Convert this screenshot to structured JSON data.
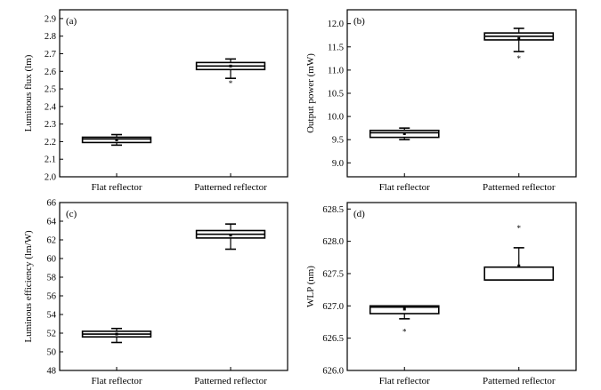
{
  "chart_data": [
    {
      "type": "box",
      "panel_label": "(a)",
      "ylabel": "Luminous flux (lm)",
      "categories": [
        "Flat reflector",
        "Patterned reflector"
      ],
      "ylim": [
        2.0,
        2.95
      ],
      "yticks": [
        "2.0",
        "2.1",
        "2.2",
        "2.3",
        "2.4",
        "2.5",
        "2.6",
        "2.7",
        "2.8",
        "2.9"
      ],
      "boxes": [
        {
          "category": "Flat reflector",
          "min": 2.18,
          "q1": 2.195,
          "median": 2.215,
          "q3": 2.225,
          "max": 2.24,
          "mean": 2.21,
          "outliers": []
        },
        {
          "category": "Patterned reflector",
          "min": 2.56,
          "q1": 2.61,
          "median": 2.63,
          "q3": 2.65,
          "max": 2.67,
          "mean": 2.63,
          "outliers": [
            2.53
          ]
        }
      ]
    },
    {
      "type": "box",
      "panel_label": "(b)",
      "ylabel": "Output power (mW)",
      "categories": [
        "Flat reflector",
        "Patterned reflector"
      ],
      "ylim": [
        8.7,
        12.3
      ],
      "yticks": [
        "9.0",
        "9.5",
        "10.0",
        "10.5",
        "11.0",
        "11.5",
        "12.0"
      ],
      "boxes": [
        {
          "category": "Flat reflector",
          "min": 9.5,
          "q1": 9.55,
          "median": 9.65,
          "q3": 9.7,
          "max": 9.75,
          "mean": 9.63,
          "outliers": []
        },
        {
          "category": "Patterned reflector",
          "min": 11.4,
          "q1": 11.65,
          "median": 11.73,
          "q3": 11.8,
          "max": 11.9,
          "mean": 11.68,
          "outliers": [
            11.25
          ]
        }
      ]
    },
    {
      "type": "box",
      "panel_label": "(c)",
      "ylabel": "Luminous efficiency (lm/W)",
      "categories": [
        "Flat reflector",
        "Patterned reflector"
      ],
      "ylim": [
        48,
        66
      ],
      "yticks": [
        "48",
        "50",
        "52",
        "54",
        "56",
        "58",
        "60",
        "62",
        "64",
        "66"
      ],
      "boxes": [
        {
          "category": "Flat reflector",
          "min": 51.0,
          "q1": 51.6,
          "median": 51.9,
          "q3": 52.2,
          "max": 52.5,
          "mean": 51.9,
          "outliers": []
        },
        {
          "category": "Patterned reflector",
          "min": 61.0,
          "q1": 62.2,
          "median": 62.6,
          "q3": 63.0,
          "max": 63.7,
          "mean": 62.5,
          "outliers": []
        }
      ]
    },
    {
      "type": "box",
      "panel_label": "(d)",
      "ylabel": "WLP (nm)",
      "categories": [
        "Flat reflector",
        "Patterned reflector"
      ],
      "ylim": [
        626.0,
        628.6
      ],
      "yticks": [
        "626.0",
        "626.5",
        "627.0",
        "627.5",
        "628.0",
        "628.5"
      ],
      "boxes": [
        {
          "category": "Flat reflector",
          "min": 626.8,
          "q1": 626.88,
          "median": 626.98,
          "q3": 627.0,
          "max": 627.0,
          "mean": 626.95,
          "outliers": [
            626.6
          ]
        },
        {
          "category": "Patterned reflector",
          "min": 627.4,
          "q1": 627.4,
          "median": 627.4,
          "q3": 627.6,
          "max": 627.9,
          "mean": 627.62,
          "outliers": [
            628.2
          ]
        }
      ]
    }
  ]
}
